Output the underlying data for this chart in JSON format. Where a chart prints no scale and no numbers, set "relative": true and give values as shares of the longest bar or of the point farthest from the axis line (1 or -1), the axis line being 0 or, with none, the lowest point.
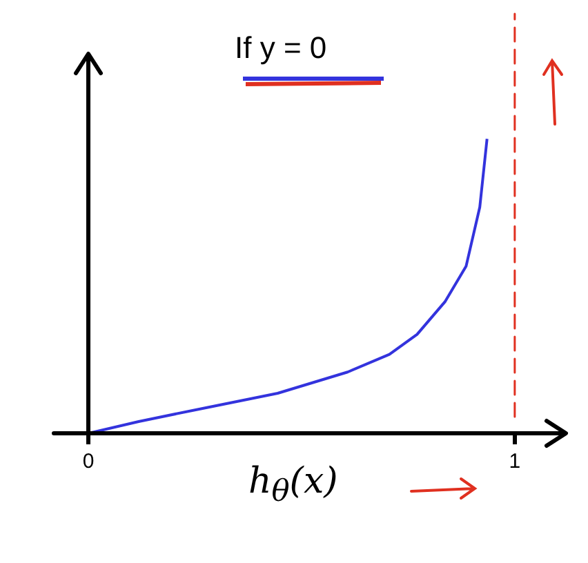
{
  "chart_data": {
    "type": "line",
    "title": "If y = 0",
    "xlabel": "h$_{θ}$(x)",
    "relative": true,
    "x": [
      0,
      0.118,
      0.28,
      0.444,
      0.608,
      0.706,
      0.771,
      0.837,
      0.886,
      0.918,
      0.935
    ],
    "series": [
      {
        "color": "#3333dd",
        "values": [
          0,
          0.04,
          0.088,
          0.136,
          0.208,
          0.268,
          0.336,
          0.448,
          0.568,
          0.768,
          1
        ]
      }
    ],
    "xlim": [
      0,
      1.12
    ],
    "xticks": [
      0,
      1
    ],
    "grid": false,
    "legend": false,
    "marker": "none",
    "line_style": "solid",
    "ref_lines": [
      {
        "axis": "x",
        "value": 1,
        "color": "#e03020",
        "line_style": "dashed"
      }
    ]
  }
}
